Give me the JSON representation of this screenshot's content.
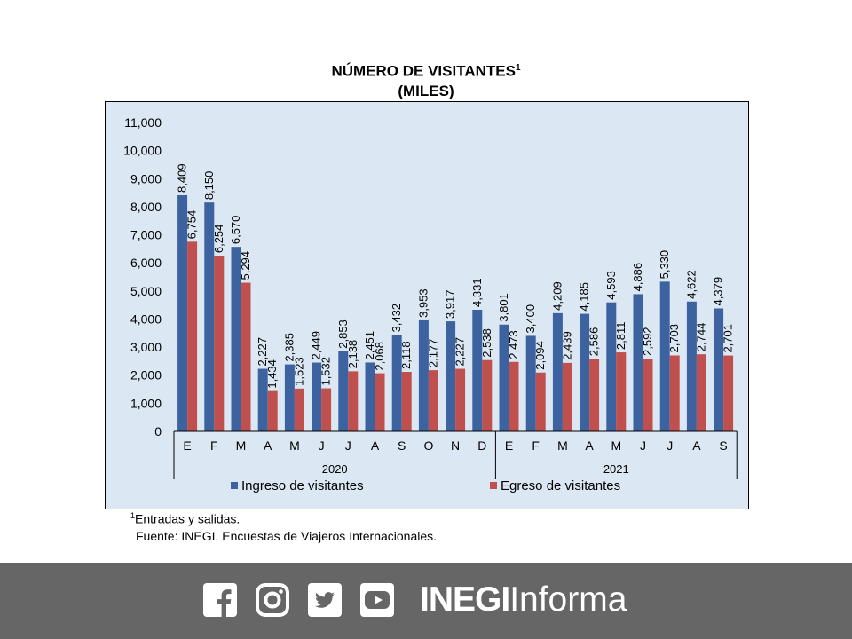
{
  "chart_data": {
    "type": "bar",
    "title": "NÚMERO DE VISITANTES",
    "title_footnote_mark": "1",
    "subtitle": "(MILES)",
    "categories": [
      "E",
      "F",
      "M",
      "A",
      "M",
      "J",
      "J",
      "A",
      "S",
      "O",
      "N",
      "D",
      "E",
      "F",
      "M",
      "A",
      "M",
      "J",
      "J",
      "A",
      "S"
    ],
    "groups": [
      {
        "label": "2020",
        "count": 12
      },
      {
        "label": "2021",
        "count": 9
      }
    ],
    "ylim": [
      0,
      11000
    ],
    "yticks": [
      0,
      1000,
      2000,
      3000,
      4000,
      5000,
      6000,
      7000,
      8000,
      9000,
      10000,
      11000
    ],
    "ytick_labels": [
      "0",
      "1,000",
      "2,000",
      "3,000",
      "4,000",
      "5,000",
      "6,000",
      "7,000",
      "8,000",
      "9,000",
      "10,000",
      "11,000"
    ],
    "grid": false,
    "legend_position": "bottom",
    "series": [
      {
        "name": "Ingreso de visitantes",
        "color": "#3d62a0",
        "values": [
          8409,
          8150,
          6570,
          2227,
          2385,
          2449,
          2853,
          2451,
          3432,
          3953,
          3917,
          4331,
          3801,
          3400,
          4209,
          4185,
          4593,
          4886,
          5330,
          4622,
          4379
        ],
        "labels": [
          "8,409",
          "8,150",
          "6,570",
          "2,227",
          "2,385",
          "2,449",
          "2,853",
          "2,451",
          "3,432",
          "3,953",
          "3,917",
          "4,331",
          "3,801",
          "3,400",
          "4,209",
          "4,185",
          "4,593",
          "4,886",
          "5,330",
          "4,622",
          "4,379"
        ]
      },
      {
        "name": "Egreso de visitantes",
        "color": "#c0504d",
        "values": [
          6754,
          6254,
          5294,
          1434,
          1523,
          1532,
          2138,
          2068,
          2118,
          2177,
          2227,
          2538,
          2473,
          2094,
          2439,
          2586,
          2811,
          2592,
          2703,
          2744,
          2701
        ],
        "labels": [
          "6,754",
          "6,254",
          "5,294",
          "1,434",
          "1,523",
          "1,532",
          "2,138",
          "2,068",
          "2,118",
          "2,177",
          "2,227",
          "2,538",
          "2,473",
          "2,094",
          "2,439",
          "2,586",
          "2,811",
          "2,592",
          "2,703",
          "2,744",
          "2,701"
        ]
      }
    ],
    "colors": {
      "plot_background": "#dbe8f4",
      "frame": "#000000"
    }
  },
  "footnote": {
    "mark": "1",
    "text": "Entradas y salidas.",
    "source": "Fuente: INEGI. Encuestas de Viajeros Internacionales."
  },
  "footer": {
    "background": "#666666",
    "social_icons": [
      "facebook-icon",
      "instagram-icon",
      "twitter-icon",
      "youtube-icon"
    ],
    "brand_bold": "INEGI",
    "brand_light": "Informa"
  }
}
